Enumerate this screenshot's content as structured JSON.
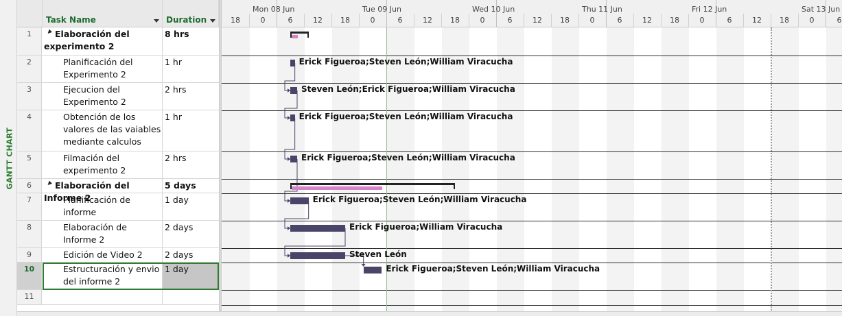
{
  "view_bar": {
    "label": "GANTT CHART"
  },
  "table": {
    "columns": [
      {
        "key": "name",
        "label": "Task Name"
      },
      {
        "key": "duration",
        "label": "Duration"
      }
    ],
    "rows": [
      {
        "id": "1",
        "name": "Elaboración del experimento 2",
        "duration": "8 hrs",
        "summary": true
      },
      {
        "id": "2",
        "name": "Planificación del Experimento 2",
        "duration": "1 hr",
        "summary": false
      },
      {
        "id": "3",
        "name": "Ejecucion del Experimento 2",
        "duration": "2 hrs",
        "summary": false
      },
      {
        "id": "4",
        "name": "Obtención de los valores de las vaiables mediante calculos",
        "duration": "1 hr",
        "summary": false
      },
      {
        "id": "5",
        "name": "Filmación del experimento 2",
        "duration": "2 hrs",
        "summary": false
      },
      {
        "id": "6",
        "name": "Elaboración del Informe 2",
        "duration": "5 days",
        "summary": true
      },
      {
        "id": "7",
        "name": "Planificación  de informe",
        "duration": "1 day",
        "summary": false
      },
      {
        "id": "8",
        "name": "Elaboración de Informe 2",
        "duration": "2 days",
        "summary": false
      },
      {
        "id": "9",
        "name": "Edición de Video 2",
        "duration": "2 days",
        "summary": false
      },
      {
        "id": "10",
        "name": "Estructuración y envio del informe 2",
        "duration": "1 day",
        "summary": false,
        "selected": true
      },
      {
        "id": "11",
        "name": "",
        "duration": "",
        "summary": false
      }
    ]
  },
  "timescale": {
    "days": [
      "Mon 08 Jun",
      "Tue 09 Jun",
      "Wed 10 Jun",
      "Thu 11 Jun",
      "Fri 12 Jun",
      "Sat 13 Jun"
    ],
    "hours": [
      "18",
      "0",
      "6",
      "12",
      "18",
      "0",
      "6",
      "12",
      "18",
      "0",
      "6",
      "12",
      "18",
      "0",
      "6",
      "12",
      "18",
      "0",
      "6",
      "12",
      "18",
      "0",
      "6"
    ]
  },
  "gantt": {
    "tasks": [
      {
        "row": 1,
        "start": 6,
        "end": 14,
        "kind": "summary",
        "progress": 0.35,
        "resources": ""
      },
      {
        "row": 2,
        "start": 6,
        "end": 8,
        "kind": "task",
        "resources": "Erick Figueroa;Steven León;William Viracucha"
      },
      {
        "row": 3,
        "start": 6,
        "end": 9,
        "kind": "task",
        "resources": "Steven León;Erick Figueroa;William Viracucha"
      },
      {
        "row": 4,
        "start": 6,
        "end": 8,
        "kind": "task",
        "resources": "Erick Figueroa;Steven León;William Viracucha"
      },
      {
        "row": 5,
        "start": 6,
        "end": 9,
        "kind": "task",
        "resources": "Erick Figueroa;Steven León;William Viracucha"
      },
      {
        "row": 6,
        "start": 6,
        "end": 78,
        "kind": "summary",
        "progress": 0.55,
        "resources": ""
      },
      {
        "row": 7,
        "start": 6,
        "end": 14,
        "kind": "task",
        "resources": "Erick Figueroa;Steven León;William Viracucha"
      },
      {
        "row": 8,
        "start": 6,
        "end": 30,
        "kind": "task",
        "resources": "Erick Figueroa;William Viracucha"
      },
      {
        "row": 9,
        "start": 6,
        "end": 30,
        "kind": "task",
        "resources": "Steven León"
      },
      {
        "row": 10,
        "start": 38,
        "end": 46,
        "kind": "task",
        "resources": "Erick Figueroa;Steven León;William Viracucha"
      }
    ],
    "links": [
      [
        2,
        3
      ],
      [
        3,
        4
      ],
      [
        4,
        5
      ],
      [
        5,
        7
      ],
      [
        7,
        8
      ],
      [
        8,
        9
      ],
      [
        9,
        10
      ]
    ]
  }
}
